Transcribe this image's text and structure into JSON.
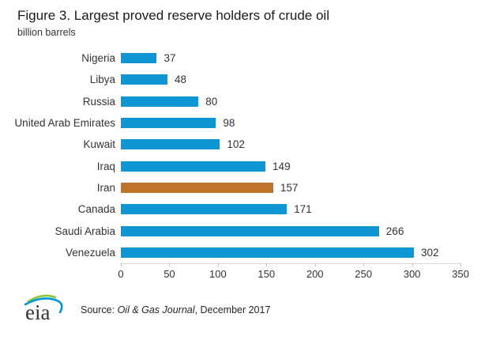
{
  "title": "Figure 3. Largest proved reserve holders of crude oil",
  "subtitle": "billion barrels",
  "source": {
    "prefix": "Source: ",
    "journal": "Oil & Gas Journal",
    "suffix": ", December 2017"
  },
  "logo": {
    "text": "eia"
  },
  "colors": {
    "bar": "#0d95d4",
    "bar_highlight": "#bf7229",
    "axis_line": "#d9d9d9",
    "tick": "#bfbfbf",
    "text": "#333333",
    "logo_text": "#333333",
    "logo_green": "#8cc63e",
    "logo_blue": "#0096d7"
  },
  "chart_data": {
    "type": "bar",
    "orientation": "horizontal",
    "title": "Figure 3. Largest proved reserve holders of crude oil",
    "xlabel": "",
    "ylabel": "billion barrels",
    "categories": [
      "Nigeria",
      "Libya",
      "Russia",
      "United Arab Emirates",
      "Kuwait",
      "Iraq",
      "Iran",
      "Canada",
      "Saudi Arabia",
      "Venezuela"
    ],
    "values": [
      37,
      48,
      80,
      98,
      102,
      149,
      157,
      171,
      266,
      302
    ],
    "value_labels": [
      37,
      48,
      80,
      98,
      102,
      149,
      157,
      171,
      266,
      302
    ],
    "highlighted_category": "Iran",
    "xlim": [
      0,
      350
    ],
    "x_ticks": [
      0,
      50,
      100,
      150,
      200,
      250,
      300,
      350
    ],
    "grid": false,
    "legend": false
  }
}
